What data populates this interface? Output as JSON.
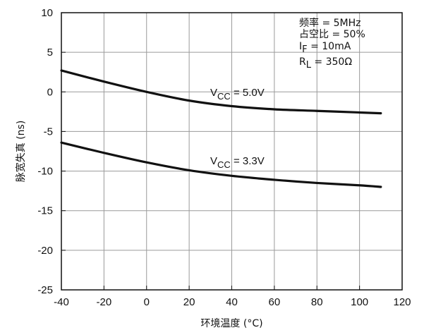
{
  "chart_data": {
    "type": "line",
    "xlabel": "环境温度 (°C)",
    "ylabel": "脉宽失真 (ns)",
    "xlim": [
      -40,
      120
    ],
    "ylim": [
      -25,
      10
    ],
    "x_ticks": [
      -40,
      -20,
      0,
      20,
      40,
      60,
      80,
      100,
      120
    ],
    "y_ticks": [
      10,
      5,
      0,
      -5,
      -10,
      -15,
      -20,
      -25
    ],
    "grid": true,
    "annotations": [
      "频率 = 5MHz",
      "占空比 = 50%",
      "I_F = 10mA",
      "R_L = 350Ω"
    ],
    "series": [
      {
        "name": "V_CC = 5.0V",
        "label_main": "V",
        "label_sub": "CC",
        "label_rest": " = 5.0V",
        "x": [
          -40,
          -20,
          0,
          20,
          40,
          60,
          80,
          100,
          110
        ],
        "y": [
          2.7,
          1.3,
          0.0,
          -1.1,
          -1.8,
          -2.2,
          -2.4,
          -2.6,
          -2.7
        ]
      },
      {
        "name": "V_CC = 3.3V",
        "label_main": "V",
        "label_sub": "CC",
        "label_rest": " = 3.3V",
        "x": [
          -40,
          -20,
          0,
          20,
          40,
          60,
          80,
          100,
          110
        ],
        "y": [
          -6.4,
          -7.7,
          -8.9,
          -9.9,
          -10.6,
          -11.1,
          -11.5,
          -11.8,
          -12.0
        ]
      }
    ],
    "colors": {
      "line": "#111111",
      "grid": "#9a9a9a",
      "axis": "#111111"
    }
  }
}
